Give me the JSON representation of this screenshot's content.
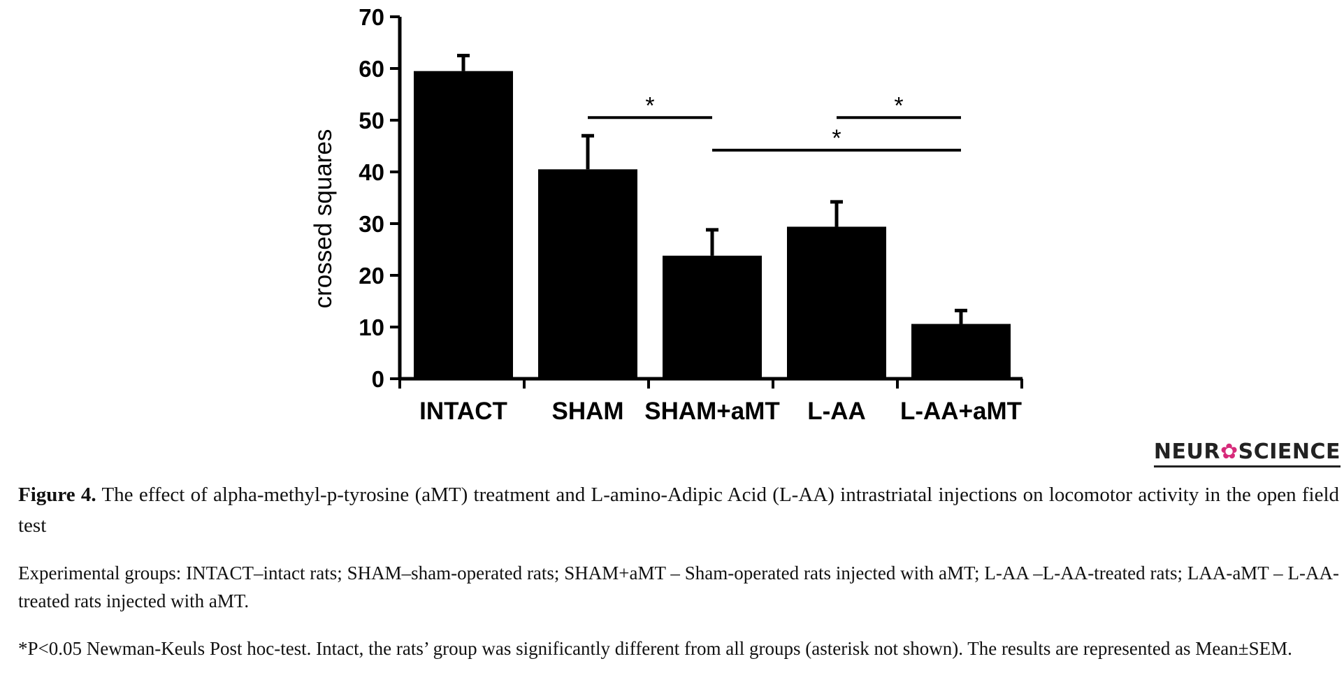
{
  "chart_data": {
    "type": "bar",
    "categories": [
      "INTACT",
      "SHAM",
      "SHAM+aMT",
      "L-AA",
      "L-AA+aMT"
    ],
    "values": [
      59.5,
      40.5,
      23.8,
      29.4,
      10.6
    ],
    "errors": [
      3.0,
      6.5,
      5.0,
      4.8,
      2.6
    ],
    "ylabel": "crossed squares",
    "ylim": [
      0,
      70
    ],
    "yticks": [
      0,
      10,
      20,
      30,
      40,
      50,
      60,
      70
    ],
    "bar_color": "#000000",
    "significance": [
      {
        "from": 1,
        "to": 2,
        "label": "*",
        "level": 50.5
      },
      {
        "from": 3,
        "to": 4,
        "label": "*",
        "level": 50.5
      },
      {
        "from": 2,
        "to": 4,
        "label": "*",
        "level": 44.2
      }
    ]
  },
  "logo": {
    "prefix": "NEUR",
    "suffix": "SCIENCE"
  },
  "caption": {
    "figure_label": "Figure 4.",
    "title": "The effect of alpha-methyl-p-tyrosine (aMT) treatment and L-amino-Adipic Acid (L-AA) intrastriatal injections on locomotor activity in the open field test",
    "groups": "Experimental groups: INTACT–intact rats; SHAM–sham-operated rats; SHAM+aMT – Sham-operated rats injected with aMT; L-AA –L-AA-treated rats; LAA-aMT – L-AA-treated rats injected with aMT.",
    "stats": "*P<0.05 Newman-Keuls Post hoc-test. Intact, the rats’ group was significantly different from all groups (asterisk not shown). The results are represented as Mean±SEM."
  }
}
